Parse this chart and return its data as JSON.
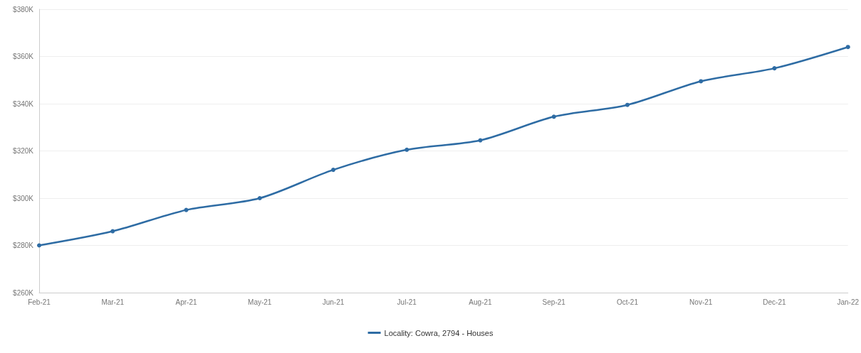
{
  "chart_data": {
    "type": "line",
    "categories": [
      "Feb-21",
      "Mar-21",
      "Apr-21",
      "May-21",
      "Jun-21",
      "Jul-21",
      "Aug-21",
      "Sep-21",
      "Oct-21",
      "Nov-21",
      "Dec-21",
      "Jan-22"
    ],
    "series": [
      {
        "name": "Locality: Cowra, 2794 - Houses",
        "color": "#2e6ca4",
        "values": [
          280,
          286,
          295,
          300,
          312,
          320.5,
          324.5,
          334.5,
          339.5,
          349.5,
          355,
          364
        ]
      }
    ],
    "ylim": [
      260,
      380
    ],
    "yticks": [
      {
        "value": 260,
        "label": "$260K"
      },
      {
        "value": 280,
        "label": "$280K"
      },
      {
        "value": 300,
        "label": "$300K"
      },
      {
        "value": 320,
        "label": "$320K"
      },
      {
        "value": 340,
        "label": "$340K"
      },
      {
        "value": 360,
        "label": "$360K"
      },
      {
        "value": 380,
        "label": "$380K"
      }
    ],
    "grid": "y",
    "legend": "bottom",
    "marker": "circle",
    "line_style": "solid"
  }
}
